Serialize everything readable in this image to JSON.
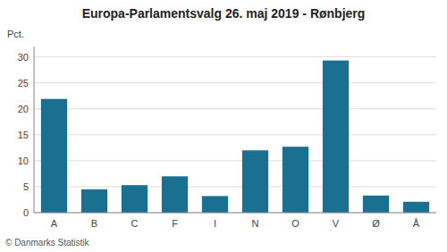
{
  "chart_data": {
    "type": "bar",
    "title": "Europa-Parlamentsvalg 26. maj 2019 - Rønbjerg",
    "categories": [
      "A",
      "B",
      "C",
      "F",
      "I",
      "N",
      "O",
      "V",
      "Ø",
      "Å"
    ],
    "values": [
      21.9,
      4.5,
      5.3,
      7.0,
      3.2,
      12.0,
      12.7,
      29.3,
      3.3,
      2.1
    ],
    "color": "#1a7090",
    "ylabel": "Pct.",
    "ylim": [
      0,
      32
    ],
    "yticks": [
      0,
      5,
      10,
      15,
      20,
      25,
      30
    ],
    "grid": true,
    "footer": "© Danmarks Statistik"
  }
}
